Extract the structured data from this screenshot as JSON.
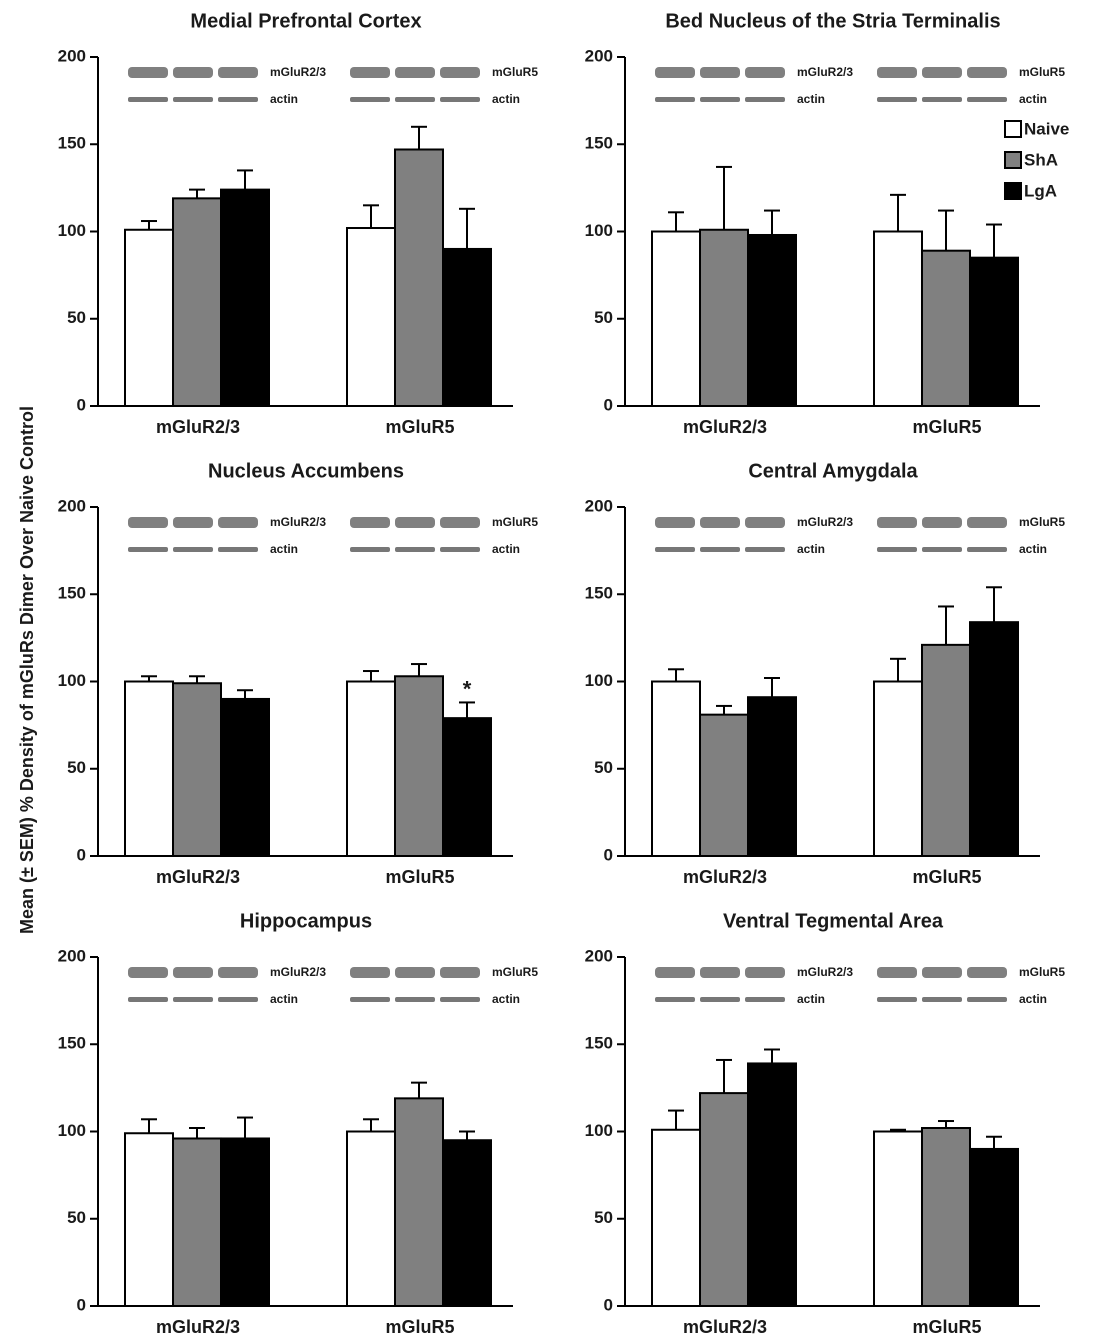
{
  "y_label": "Mean (± SEM) % Density of mGluRs Dimer Over Naive Control",
  "chart_data": [
    {
      "type": "bar",
      "title": "Medial Prefrontal Cortex",
      "categories": [
        "mGluR2/3",
        "mGluR5"
      ],
      "series": [
        {
          "color": "#ffffff",
          "values": [
            101,
            102
          ],
          "errors": [
            5,
            13
          ]
        },
        {
          "color": "#808080",
          "values": [
            119,
            147
          ],
          "errors": [
            5,
            13
          ]
        },
        {
          "color": "#000000",
          "values": [
            124,
            90
          ],
          "errors": [
            11,
            23
          ]
        }
      ],
      "ylim": [
        0,
        200
      ],
      "yticks": [
        0,
        50,
        100,
        150,
        200
      ],
      "blot_labels": [
        "mGluR2/3",
        "actin",
        "mGluR5",
        "actin"
      ]
    },
    {
      "type": "bar",
      "title": "Bed Nucleus of the Stria Terminalis",
      "categories": [
        "mGluR2/3",
        "mGluR5"
      ],
      "series": [
        {
          "name": "Naive",
          "color": "#ffffff",
          "values": [
            100,
            100
          ],
          "errors": [
            11,
            21
          ]
        },
        {
          "name": "ShA",
          "color": "#808080",
          "values": [
            101,
            89
          ],
          "errors": [
            36,
            23
          ]
        },
        {
          "name": "LgA",
          "color": "#000000",
          "values": [
            98,
            85
          ],
          "errors": [
            14,
            19
          ]
        }
      ],
      "ylim": [
        0,
        200
      ],
      "yticks": [
        0,
        50,
        100,
        150,
        200
      ],
      "legend": "upper right",
      "blot_labels": [
        "mGluR2/3",
        "actin",
        "mGluR5",
        "actin"
      ]
    },
    {
      "type": "bar",
      "title": "Nucleus Accumbens",
      "categories": [
        "mGluR2/3",
        "mGluR5"
      ],
      "series": [
        {
          "color": "#ffffff",
          "values": [
            100,
            100
          ],
          "errors": [
            3,
            6
          ]
        },
        {
          "color": "#808080",
          "values": [
            99,
            103
          ],
          "errors": [
            4,
            7
          ]
        },
        {
          "color": "#000000",
          "values": [
            90,
            79
          ],
          "errors": [
            5,
            9
          ]
        }
      ],
      "ylim": [
        0,
        200
      ],
      "yticks": [
        0,
        50,
        100,
        150,
        200
      ],
      "blot_labels": [
        "mGluR2/3",
        "actin",
        "mGluR5",
        "actin"
      ],
      "annotations": [
        {
          "text": "*",
          "series": 2,
          "index": 1
        }
      ]
    },
    {
      "type": "bar",
      "title": "Central Amygdala",
      "categories": [
        "mGluR2/3",
        "mGluR5"
      ],
      "series": [
        {
          "color": "#ffffff",
          "values": [
            100,
            100
          ],
          "errors": [
            7,
            13
          ]
        },
        {
          "color": "#808080",
          "values": [
            81,
            121
          ],
          "errors": [
            5,
            22
          ]
        },
        {
          "color": "#000000",
          "values": [
            91,
            134
          ],
          "errors": [
            11,
            20
          ]
        }
      ],
      "ylim": [
        0,
        200
      ],
      "yticks": [
        0,
        50,
        100,
        150,
        200
      ],
      "blot_labels": [
        "mGluR2/3",
        "actin",
        "mGluR5",
        "actin"
      ]
    },
    {
      "type": "bar",
      "title": "Hippocampus",
      "categories": [
        "mGluR2/3",
        "mGluR5"
      ],
      "series": [
        {
          "color": "#ffffff",
          "values": [
            99,
            100
          ],
          "errors": [
            8,
            7
          ]
        },
        {
          "color": "#808080",
          "values": [
            96,
            119
          ],
          "errors": [
            6,
            9
          ]
        },
        {
          "color": "#000000",
          "values": [
            96,
            95
          ],
          "errors": [
            12,
            5
          ]
        }
      ],
      "ylim": [
        0,
        200
      ],
      "yticks": [
        0,
        50,
        100,
        150,
        200
      ],
      "blot_labels": [
        "mGluR2/3",
        "actin",
        "mGluR5",
        "actin"
      ]
    },
    {
      "type": "bar",
      "title": "Ventral Tegmental Area",
      "categories": [
        "mGluR2/3",
        "mGluR5"
      ],
      "series": [
        {
          "color": "#ffffff",
          "values": [
            101,
            100
          ],
          "errors": [
            11,
            1
          ]
        },
        {
          "color": "#808080",
          "values": [
            122,
            102
          ],
          "errors": [
            19,
            4
          ]
        },
        {
          "color": "#000000",
          "values": [
            139,
            90
          ],
          "errors": [
            8,
            7
          ]
        }
      ],
      "ylim": [
        0,
        200
      ],
      "yticks": [
        0,
        50,
        100,
        150,
        200
      ],
      "blot_labels": [
        "mGluR2/3",
        "actin",
        "mGluR5",
        "actin"
      ]
    }
  ]
}
